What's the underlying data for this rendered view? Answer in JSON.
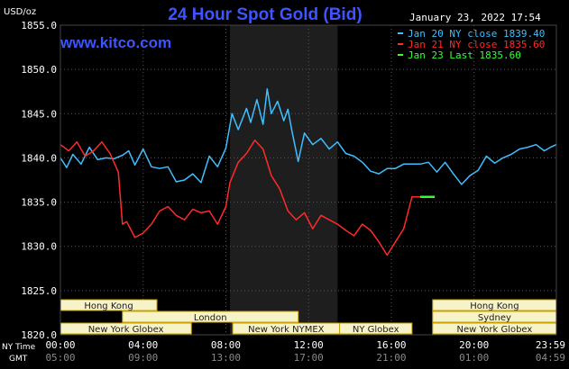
{
  "header": {
    "title": "24 Hour Spot Gold (Bid)",
    "date": "January 23, 2022 17:54",
    "units": "USD/oz",
    "website": "www.kitco.com"
  },
  "legend": [
    {
      "label": "Jan 20 NY close 1839.40",
      "color": "#3fbfff"
    },
    {
      "label": "Jan 21 NY close 1835.60",
      "color": "#ff2a2a"
    },
    {
      "label": "Jan 23 Last 1835.60",
      "color": "#33ff33"
    }
  ],
  "axis_labels": {
    "ny_time": "NY Time",
    "gmt": "GMT"
  },
  "colors": {
    "background": "#000000",
    "axis_text": "#ffffff",
    "grid": "#555555",
    "shade": "#1e1e1e",
    "title": "#3c55ff",
    "website": "#3c55ff",
    "session_fill": "#f7f3c8",
    "session_border": "#c8a000",
    "session_text": "#1a1a1a"
  },
  "sessions": [
    {
      "label": "Hong Kong",
      "row": 0,
      "start": "00:00",
      "end": "04:40"
    },
    {
      "label": "London",
      "row": 1,
      "start": "03:00",
      "end": "11:30"
    },
    {
      "label": "New York Globex",
      "row": 2,
      "start": "00:00",
      "end": "06:20"
    },
    {
      "label": "New York NYMEX",
      "row": 2,
      "start": "08:20",
      "end": "13:30"
    },
    {
      "label": "NY Globex",
      "row": 2,
      "start": "13:30",
      "end": "17:00"
    },
    {
      "label": "Hong Kong",
      "row": 0,
      "start": "18:00",
      "end": "23:59"
    },
    {
      "label": "Sydney",
      "row": 1,
      "start": "18:00",
      "end": "23:59"
    },
    {
      "label": "New York Globex",
      "row": 2,
      "start": "18:00",
      "end": "23:59"
    }
  ],
  "chart_data": {
    "type": "line",
    "title": "24 Hour Spot Gold (Bid)",
    "ylabel": "USD/oz",
    "ylim": [
      1820,
      1855
    ],
    "yticks": [
      "1855.0",
      "1850.0",
      "1845.0",
      "1840.0",
      "1835.0",
      "1830.0",
      "1825.0",
      "1820.0"
    ],
    "xticks_ny": [
      "00:00",
      "04:00",
      "08:00",
      "12:00",
      "16:00",
      "20:00",
      "23:59"
    ],
    "xticks_gmt": [
      "05:00",
      "09:00",
      "13:00",
      "17:00",
      "21:00",
      "01:00",
      "04:59"
    ],
    "xlim_hours": [
      0,
      23.983
    ],
    "shaded_hours": [
      8.2,
      13.4
    ],
    "grid": true,
    "series": [
      {
        "name": "Jan 20 NY close 1839.40",
        "color": "#3fbfff",
        "x": [
          0.0,
          0.3,
          0.6,
          1.0,
          1.4,
          1.8,
          2.2,
          2.6,
          3.0,
          3.3,
          3.6,
          4.0,
          4.4,
          4.8,
          5.2,
          5.6,
          6.0,
          6.4,
          6.8,
          7.2,
          7.6,
          8.0,
          8.3,
          8.6,
          9.0,
          9.2,
          9.5,
          9.8,
          10.0,
          10.2,
          10.5,
          10.8,
          11.0,
          11.2,
          11.5,
          11.8,
          12.2,
          12.6,
          13.0,
          13.4,
          13.8,
          14.2,
          14.6,
          15.0,
          15.4,
          15.8,
          16.2,
          16.6,
          17.0,
          17.4,
          17.8,
          18.2,
          18.6,
          19.0,
          19.4,
          19.8,
          20.2,
          20.6,
          21.0,
          21.4,
          21.8,
          22.2,
          22.6,
          23.0,
          23.4,
          23.7,
          23.98
        ],
        "y": [
          1840.0,
          1838.9,
          1840.4,
          1839.3,
          1841.2,
          1839.8,
          1840.0,
          1839.9,
          1840.3,
          1840.8,
          1839.2,
          1841.0,
          1839.0,
          1838.8,
          1839.0,
          1837.3,
          1837.5,
          1838.2,
          1837.2,
          1840.2,
          1839.0,
          1841.1,
          1845.0,
          1843.2,
          1845.6,
          1844.0,
          1846.6,
          1843.8,
          1847.8,
          1845.0,
          1846.4,
          1844.2,
          1845.5,
          1843.0,
          1839.6,
          1842.8,
          1841.5,
          1842.2,
          1841.0,
          1841.8,
          1840.5,
          1840.2,
          1839.5,
          1838.5,
          1838.2,
          1838.8,
          1838.8,
          1839.3,
          1839.3,
          1839.3,
          1839.5,
          1838.4,
          1839.5,
          1838.2,
          1837.0,
          1838.0,
          1838.6,
          1840.2,
          1839.4,
          1840.0,
          1840.4,
          1841.0,
          1841.2,
          1841.5,
          1840.8,
          1841.2,
          1841.5
        ]
      },
      {
        "name": "Jan 21 NY close 1835.60",
        "color": "#ff2a2a",
        "x": [
          0.0,
          0.4,
          0.8,
          1.2,
          1.6,
          2.0,
          2.4,
          2.8,
          3.0,
          3.2,
          3.6,
          4.0,
          4.4,
          4.8,
          5.2,
          5.6,
          6.0,
          6.4,
          6.8,
          7.2,
          7.6,
          8.0,
          8.2,
          8.6,
          9.0,
          9.4,
          9.8,
          10.2,
          10.6,
          11.0,
          11.4,
          11.8,
          12.2,
          12.6,
          13.0,
          13.4,
          13.8,
          14.2,
          14.6,
          15.0,
          15.4,
          15.8,
          16.2,
          16.6,
          17.0,
          17.4
        ],
        "y": [
          1841.5,
          1840.8,
          1841.8,
          1840.2,
          1840.8,
          1841.8,
          1840.5,
          1838.4,
          1832.5,
          1832.8,
          1831.0,
          1831.5,
          1832.5,
          1834.0,
          1834.5,
          1833.5,
          1833.0,
          1834.2,
          1833.8,
          1834.0,
          1832.5,
          1834.5,
          1837.2,
          1839.5,
          1840.5,
          1842.0,
          1841.0,
          1838.0,
          1836.5,
          1834.0,
          1833.0,
          1833.8,
          1832.0,
          1833.5,
          1833.0,
          1832.5,
          1831.8,
          1831.2,
          1832.5,
          1831.8,
          1830.5,
          1829.0,
          1830.5,
          1832.0,
          1835.6,
          1835.6
        ]
      },
      {
        "name": "Jan 23 Last 1835.60",
        "color": "#33ff33",
        "x": [
          17.4,
          18.1
        ],
        "y": [
          1835.6,
          1835.6
        ]
      }
    ]
  }
}
